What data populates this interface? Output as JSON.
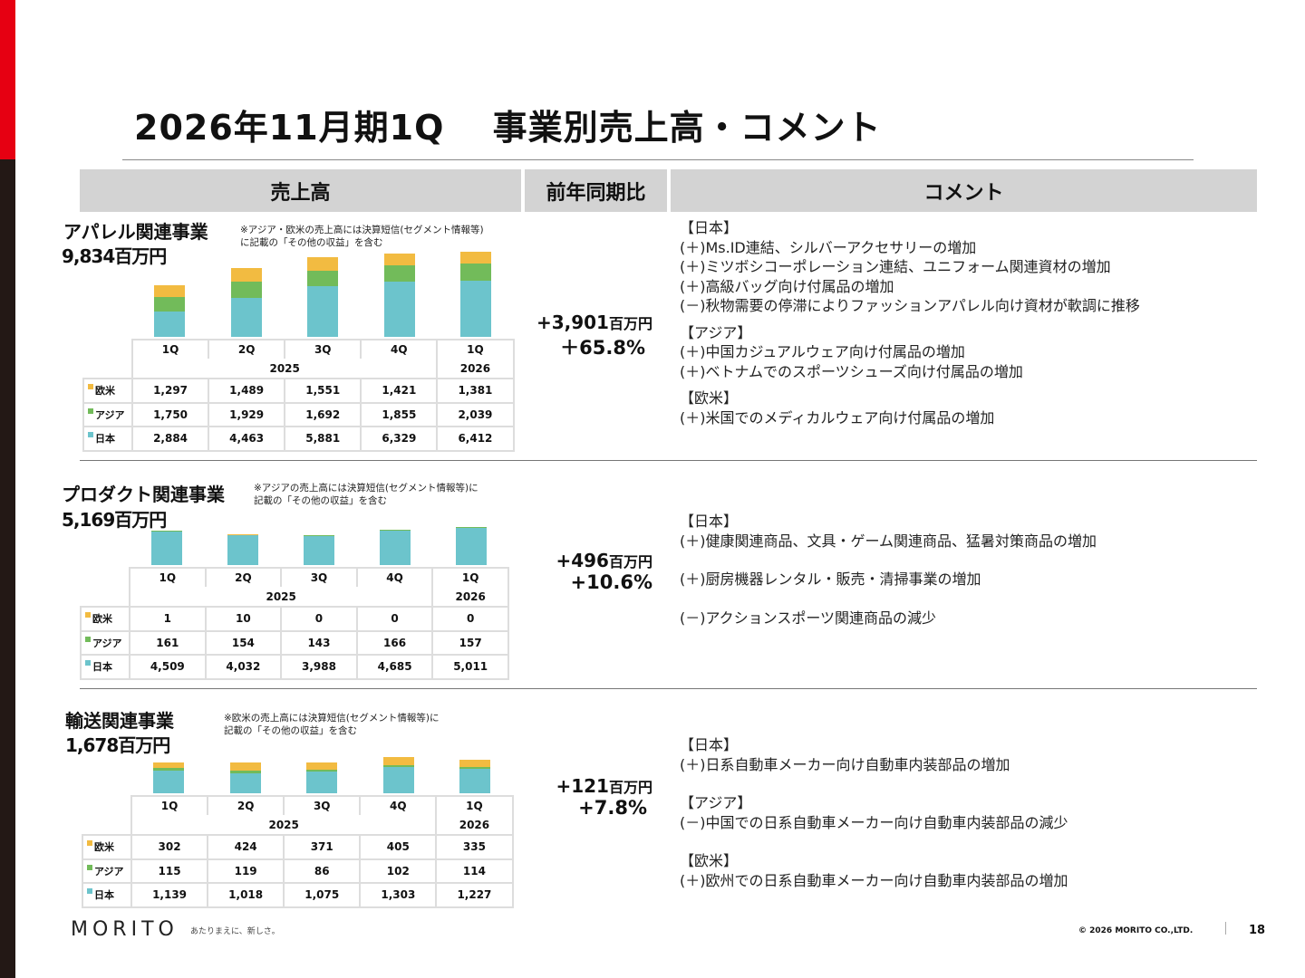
{
  "title": "2026年11月期1Q　 事業別売上高・コメント",
  "headers": {
    "sales": "売上高",
    "yoy": "前年同期比",
    "comment": "コメント"
  },
  "legend": {
    "europe": "欧米",
    "asia": "アジア",
    "japan": "日本"
  },
  "colors": {
    "europe": "#f2bb41",
    "asia": "#72bb5a",
    "japan": "#6cc4cc"
  },
  "quarters": [
    "1Q",
    "2Q",
    "3Q",
    "4Q",
    "1Q"
  ],
  "years": [
    "2025",
    "2026"
  ],
  "sections": [
    {
      "name": "アパレル関連事業",
      "total": "9,834百万円",
      "note": "※アジア・欧米の売上高には決算短信(セグメント情報等)\nに記載の「その他の収益」を含む",
      "europe": [
        "1,297",
        "1,489",
        "1,551",
        "1,421",
        "1,381"
      ],
      "asia": [
        "1,750",
        "1,929",
        "1,692",
        "1,855",
        "2,039"
      ],
      "japan": [
        "2,884",
        "4,463",
        "5,881",
        "6,329",
        "6,412"
      ],
      "yoy_amount": "+3,901",
      "yoy_unit": "百万円",
      "yoy_pct": "＋65.8%",
      "comments": [
        [
          "【日本】",
          "(＋)Ms.ID連結、シルバーアクセサリーの増加",
          "(＋)ミツボシコーポレーション連結、ユニフォーム関連資材の増加",
          "(＋)高級バッグ向け付属品の増加",
          "(－)秋物需要の停滞によりファッションアパレル向け資材が軟調に推移"
        ],
        [
          "【アジア】",
          "(＋)中国カジュアルウェア向け付属品の増加",
          "(＋)ベトナムでのスポーツシューズ向け付属品の増加"
        ],
        [
          "【欧米】",
          "(＋)米国でのメディカルウェア向け付属品の増加"
        ]
      ]
    },
    {
      "name": "プロダクト関連事業",
      "total": "5,169百万円",
      "note": "※アジアの売上高には決算短信(セグメント情報等)に\n記載の「その他の収益」を含む",
      "europe": [
        "1",
        "10",
        "0",
        "0",
        "0"
      ],
      "asia": [
        "161",
        "154",
        "143",
        "166",
        "157"
      ],
      "japan": [
        "4,509",
        "4,032",
        "3,988",
        "4,685",
        "5,011"
      ],
      "yoy_amount": "+496",
      "yoy_unit": "百万円",
      "yoy_pct": "+10.6%",
      "comments": [
        [
          "【日本】",
          "(＋)健康関連商品、文具・ゲーム関連商品、猛暑対策商品の増加"
        ],
        [
          "(＋)厨房機器レンタル・販売・清掃事業の増加"
        ],
        [
          "(－)アクションスポーツ関連商品の減少"
        ]
      ]
    },
    {
      "name": "輸送関連事業",
      "total": "1,678百万円",
      "note": "※欧米の売上高には決算短信(セグメント情報等)に\n記載の「その他の収益」を含む",
      "europe": [
        "302",
        "424",
        "371",
        "405",
        "335"
      ],
      "asia": [
        "115",
        "119",
        "86",
        "102",
        "114"
      ],
      "japan": [
        "1,139",
        "1,018",
        "1,075",
        "1,303",
        "1,227"
      ],
      "yoy_amount": "+121",
      "yoy_unit": "百万円",
      "yoy_pct": "+7.8%",
      "comments": [
        [
          "【日本】",
          "(＋)日系自動車メーカー向け自動車内装部品の増加"
        ],
        [
          "【アジア】",
          "(－)中国での日系自動車メーカー向け自動車内装部品の減少"
        ],
        [
          "【欧米】",
          "(＋)欧州での日系自動車メーカー向け自動車内装部品の増加"
        ]
      ]
    }
  ],
  "footer": {
    "logo": "MORITO",
    "tagline": "あたりまえに、新しさ。",
    "copyright": "© 2026 MORITO CO.,LTD.",
    "page": "18"
  }
}
